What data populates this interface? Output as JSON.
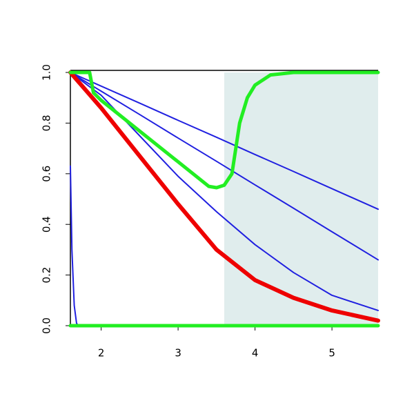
{
  "chart_data": {
    "type": "line",
    "xlim": [
      1.6,
      5.6
    ],
    "ylim": [
      0,
      1
    ],
    "xticks": [
      2,
      3,
      4,
      5
    ],
    "yticks": [
      {
        "value": 0,
        "label": "0.0"
      },
      0.2,
      0.4,
      0.6,
      0.8,
      {
        "value": 1,
        "label": "1.0"
      }
    ],
    "highlight": {
      "x": [
        3.6,
        5.6
      ],
      "color": "#e0eded"
    },
    "series": [
      {
        "color": "#2020e0",
        "width": 2,
        "x": [
          1.6,
          2,
          2.5,
          3,
          3.5,
          4,
          4.5,
          5,
          5.6
        ],
        "values": [
          1,
          0.946,
          0.879,
          0.811,
          0.744,
          0.676,
          0.609,
          0.541,
          0.46
        ]
      },
      {
        "color": "#2020e0",
        "width": 2,
        "x": [
          1.6,
          2,
          2.5,
          3,
          3.5,
          4,
          4.5,
          5,
          5.6
        ],
        "values": [
          1,
          0.926,
          0.834,
          0.741,
          0.649,
          0.556,
          0.464,
          0.371,
          0.26
        ]
      },
      {
        "color": "#2020e0",
        "width": 2,
        "x": [
          1.6,
          2,
          2.5,
          3,
          3.5,
          4,
          4.5,
          5,
          5.6
        ],
        "values": [
          1,
          0.91,
          0.75,
          0.59,
          0.45,
          0.32,
          0.21,
          0.12,
          0.06
        ]
      },
      {
        "color": "#ee0000",
        "width": 6,
        "x": [
          1.6,
          2,
          2.5,
          3,
          3.5,
          4,
          4.5,
          5,
          5.6
        ],
        "values": [
          1,
          0.86,
          0.67,
          0.48,
          0.3,
          0.18,
          0.11,
          0.06,
          0.02
        ]
      },
      {
        "color": "#2020e0",
        "width": 2,
        "x": [
          1.6,
          1.62,
          1.65,
          1.68,
          1.7,
          5.6
        ],
        "values": [
          0.63,
          0.3,
          0.08,
          0.01,
          0,
          0
        ]
      },
      {
        "color": "#22ee22",
        "width": 5,
        "x": [
          1.6,
          5.6
        ],
        "values": [
          0,
          0
        ]
      },
      {
        "color": "#22ee22",
        "width": 5,
        "x": [
          1.6,
          1.85,
          1.9,
          2,
          3.4,
          3.5,
          3.6,
          3.7,
          3.75,
          3.8,
          3.9,
          4,
          4.2,
          4.5,
          5.6
        ],
        "values": [
          1,
          1,
          0.92,
          0.89,
          0.55,
          0.545,
          0.555,
          0.6,
          0.7,
          0.8,
          0.9,
          0.95,
          0.99,
          1,
          1
        ]
      }
    ]
  }
}
